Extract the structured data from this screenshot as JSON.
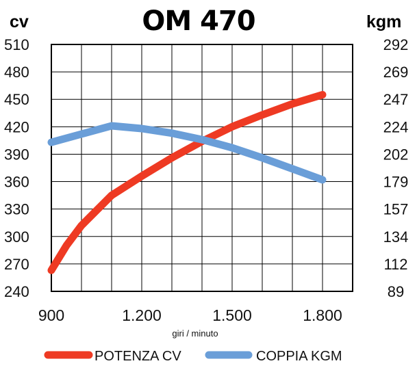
{
  "chart_data": {
    "type": "line",
    "title": "OM 470",
    "ylabel_left": "cv",
    "ylabel_right": "kgm",
    "xlabel": "giri / minuto",
    "x_ticks": [
      "900",
      "1.200",
      "1.500",
      "1.800"
    ],
    "xlim": [
      900,
      1900
    ],
    "y_left_ticks": [
      "510",
      "480",
      "450",
      "420",
      "390",
      "360",
      "330",
      "300",
      "270",
      "240"
    ],
    "ylim_left": [
      240,
      510
    ],
    "y_right_ticks": [
      "292",
      "269",
      "247",
      "224",
      "202",
      "179",
      "157",
      "134",
      "112",
      "89"
    ],
    "ylim_right": [
      89,
      292
    ],
    "grid": true,
    "series": [
      {
        "name": "POTENZA CV",
        "axis": "left",
        "color": "#ee3a23",
        "x": [
          900,
          950,
          1000,
          1100,
          1200,
          1300,
          1400,
          1500,
          1600,
          1700,
          1800
        ],
        "y": [
          263,
          290,
          312,
          345,
          366,
          386,
          404,
          420,
          433,
          445,
          455
        ]
      },
      {
        "name": "COPPIA KGM",
        "axis": "left",
        "color": "#6a9ed8",
        "x": [
          900,
          1000,
          1100,
          1200,
          1300,
          1400,
          1500,
          1600,
          1700,
          1800
        ],
        "y": [
          403,
          412,
          421,
          418,
          413,
          406,
          397,
          386,
          374,
          362
        ]
      }
    ]
  }
}
